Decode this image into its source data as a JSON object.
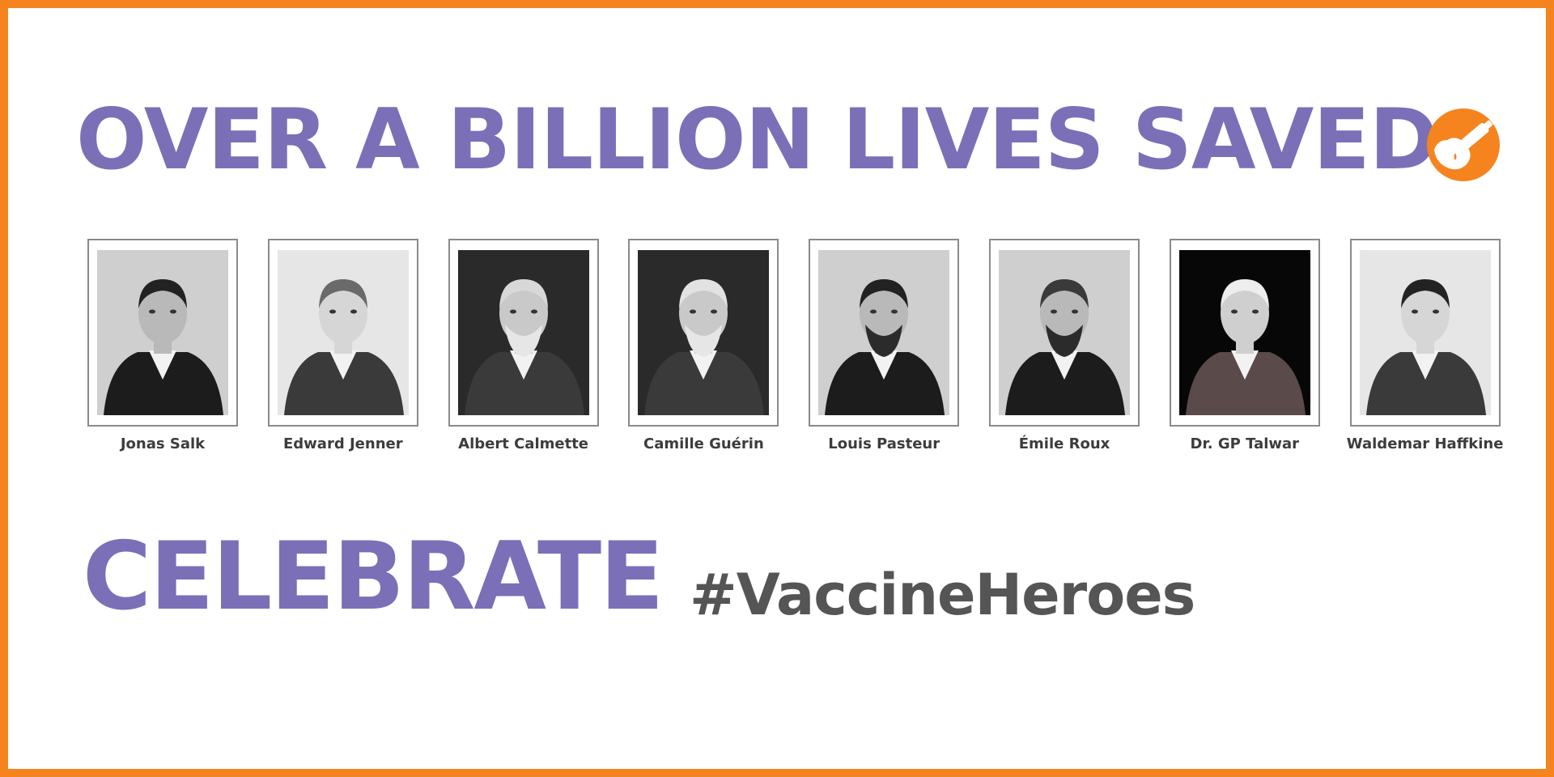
{
  "headline": "OVER A BILLION LIVES SAVED",
  "logo": {
    "icon": "vaccine-dropper-logo-icon",
    "color": "#f5841f"
  },
  "portraits": [
    {
      "name": "Jonas Salk",
      "tone": "light",
      "hair": "dark"
    },
    {
      "name": "Edward Jenner",
      "tone": "engraving",
      "hair": "curly"
    },
    {
      "name": "Albert Calmette",
      "tone": "dark",
      "hair": "grey"
    },
    {
      "name": "Camille Guérin",
      "tone": "dark",
      "hair": "bald"
    },
    {
      "name": "Louis Pasteur",
      "tone": "light",
      "hair": "dark"
    },
    {
      "name": "Émile Roux",
      "tone": "light",
      "hair": "dark-beard"
    },
    {
      "name": "Dr. GP Talwar",
      "tone": "black",
      "hair": "white"
    },
    {
      "name": "Waldemar Haffkine",
      "tone": "engraving",
      "hair": "dark"
    }
  ],
  "celebrate": "CELEBRATE",
  "hashtag": "#VaccineHeroes",
  "colors": {
    "border": "#f5841f",
    "headline": "#7b6fb8",
    "hashtag": "#555555",
    "name": "#3c3c3c"
  }
}
